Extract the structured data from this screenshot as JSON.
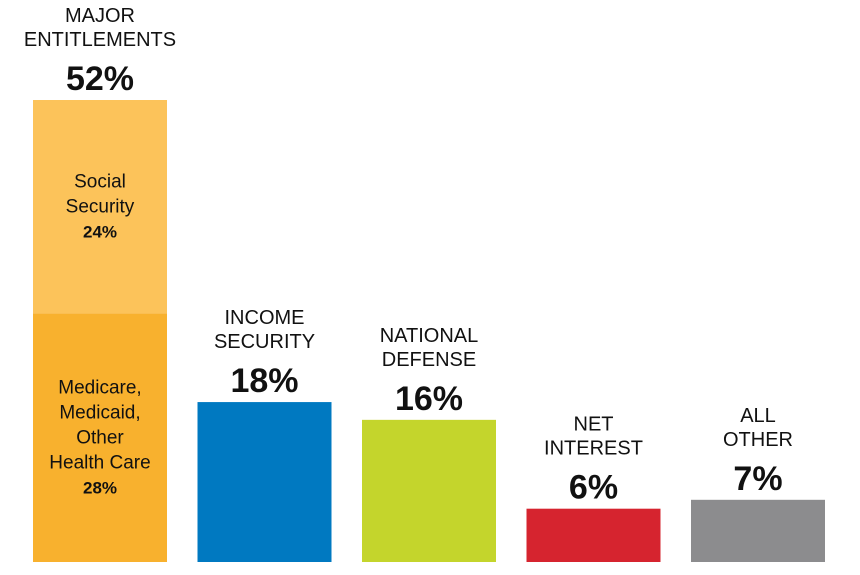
{
  "chart_data": {
    "type": "bar",
    "stacked_first_bar": true,
    "ylim": [
      0,
      52
    ],
    "grid": false,
    "bars": [
      {
        "label_lines": [
          "MAJOR",
          "ENTITLEMENTS"
        ],
        "value_label": "52%",
        "value": 52,
        "segments": [
          {
            "label_lines": [
              "Medicare,",
              "Medicaid,",
              "Other",
              "Health Care"
            ],
            "value_label": "28%",
            "value": 28,
            "color": "#F8B12E"
          },
          {
            "label_lines": [
              "Social",
              "Security"
            ],
            "value_label": "24%",
            "value": 24,
            "color": "#FCC35A"
          }
        ]
      },
      {
        "label_lines": [
          "INCOME",
          "SECURITY"
        ],
        "value_label": "18%",
        "value": 18,
        "color": "#0079C1"
      },
      {
        "label_lines": [
          "NATIONAL",
          "DEFENSE"
        ],
        "value_label": "16%",
        "value": 16,
        "color": "#C4D52C"
      },
      {
        "label_lines": [
          "NET",
          "INTEREST"
        ],
        "value_label": "6%",
        "value": 6,
        "color": "#D6242F"
      },
      {
        "label_lines": [
          "ALL",
          "OTHER"
        ],
        "value_label": "7%",
        "value": 7,
        "color": "#8C8C8E"
      }
    ]
  }
}
